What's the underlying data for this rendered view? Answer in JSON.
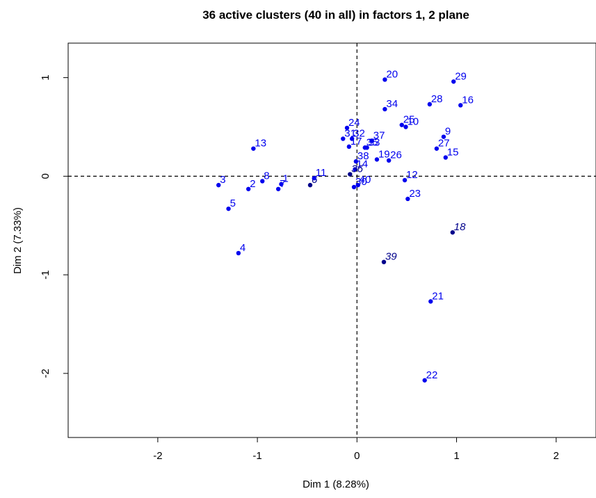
{
  "chart_data": {
    "type": "scatter",
    "title": "36 active clusters (40 in all) in factors 1, 2 plane",
    "xlabel": "Dim 1 (8.28%)",
    "ylabel": "Dim 2 (7.33%)",
    "xlim": [
      -2.9,
      2.4
    ],
    "ylim": [
      -2.65,
      1.35
    ],
    "xticks": [
      -2,
      -1,
      0,
      1,
      2
    ],
    "yticks": [
      -2,
      -1,
      0,
      1
    ],
    "xtick_labels": [
      "-2",
      "-1",
      "0",
      "1",
      "2"
    ],
    "ytick_labels": [
      "-2",
      "-1",
      "0",
      "1"
    ],
    "reference_lines": {
      "x": 0,
      "y": 0,
      "style": "dashed"
    },
    "colors": {
      "active": "#0000ee",
      "supplementary": "#00008b"
    },
    "points": [
      {
        "label": "1",
        "x": -0.76,
        "y": -0.08,
        "sup": false
      },
      {
        "label": "2",
        "x": -1.09,
        "y": -0.13,
        "sup": false
      },
      {
        "label": "3",
        "x": -1.39,
        "y": -0.09,
        "sup": false
      },
      {
        "label": "4",
        "x": -1.19,
        "y": -0.78,
        "sup": false
      },
      {
        "label": "5",
        "x": -1.29,
        "y": -0.33,
        "sup": false
      },
      {
        "label": "6",
        "x": -0.47,
        "y": -0.09,
        "sup": true
      },
      {
        "label": "7",
        "x": -0.79,
        "y": -0.13,
        "sup": false
      },
      {
        "label": "8",
        "x": -0.95,
        "y": -0.05,
        "sup": false
      },
      {
        "label": "9",
        "x": 0.87,
        "y": 0.4,
        "sup": false
      },
      {
        "label": "10",
        "x": 0.49,
        "y": 0.5,
        "sup": false
      },
      {
        "label": "11",
        "x": -0.43,
        "y": -0.02,
        "sup": false
      },
      {
        "label": "12",
        "x": 0.48,
        "y": -0.04,
        "sup": false
      },
      {
        "label": "13",
        "x": -1.04,
        "y": 0.28,
        "sup": false
      },
      {
        "label": "14",
        "x": -0.02,
        "y": 0.07,
        "sup": false
      },
      {
        "label": "15",
        "x": 0.89,
        "y": 0.19,
        "sup": false
      },
      {
        "label": "16",
        "x": 1.04,
        "y": 0.72,
        "sup": false
      },
      {
        "label": "17",
        "x": -0.08,
        "y": 0.3,
        "sup": false
      },
      {
        "label": "18",
        "x": 0.96,
        "y": -0.57,
        "sup": true
      },
      {
        "label": "19",
        "x": 0.2,
        "y": 0.17,
        "sup": false
      },
      {
        "label": "20",
        "x": 0.28,
        "y": 0.98,
        "sup": false
      },
      {
        "label": "21",
        "x": 0.74,
        "y": -1.27,
        "sup": false
      },
      {
        "label": "22",
        "x": 0.68,
        "y": -2.07,
        "sup": false
      },
      {
        "label": "23",
        "x": 0.51,
        "y": -0.23,
        "sup": false
      },
      {
        "label": "24",
        "x": -0.1,
        "y": 0.49,
        "sup": false
      },
      {
        "label": "25",
        "x": 0.45,
        "y": 0.52,
        "sup": false
      },
      {
        "label": "26",
        "x": 0.32,
        "y": 0.16,
        "sup": false
      },
      {
        "label": "27",
        "x": 0.8,
        "y": 0.28,
        "sup": false
      },
      {
        "label": "28",
        "x": 0.73,
        "y": 0.73,
        "sup": false
      },
      {
        "label": "29",
        "x": 0.97,
        "y": 0.96,
        "sup": false
      },
      {
        "label": "30",
        "x": -0.03,
        "y": -0.11,
        "sup": false
      },
      {
        "label": "31",
        "x": -0.14,
        "y": 0.38,
        "sup": false
      },
      {
        "label": "32",
        "x": -0.05,
        "y": 0.38,
        "sup": false
      },
      {
        "label": "33",
        "x": 0.1,
        "y": 0.29,
        "sup": false
      },
      {
        "label": "34",
        "x": 0.28,
        "y": 0.68,
        "sup": false
      },
      {
        "label": "35",
        "x": 0.08,
        "y": 0.29,
        "sup": false
      },
      {
        "label": "36",
        "x": -0.07,
        "y": 0.02,
        "sup": true
      },
      {
        "label": "37",
        "x": 0.15,
        "y": 0.36,
        "sup": false
      },
      {
        "label": "38",
        "x": -0.01,
        "y": 0.15,
        "sup": false
      },
      {
        "label": "39",
        "x": 0.27,
        "y": -0.87,
        "sup": true
      },
      {
        "label": "40",
        "x": 0.01,
        "y": -0.09,
        "sup": false
      }
    ]
  }
}
